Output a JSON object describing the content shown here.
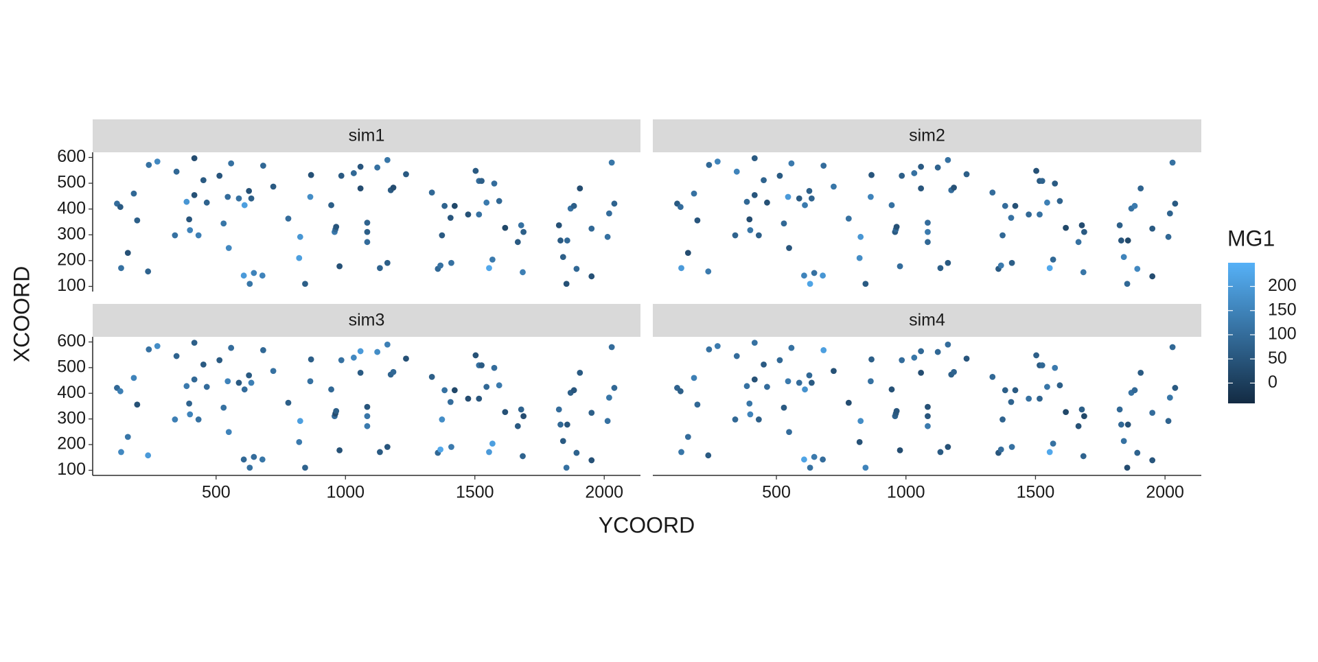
{
  "chart_data": {
    "type": "scatter",
    "x_label": "YCOORD",
    "y_label": "XCOORD",
    "xlim": [
      23,
      2140
    ],
    "ylim": [
      80,
      620
    ],
    "xticks": [
      500,
      1000,
      1500,
      2000
    ],
    "yticks": [
      100,
      200,
      300,
      400,
      500,
      600
    ],
    "x": [
      117,
      130,
      133,
      159,
      182,
      195,
      237,
      240,
      273,
      341,
      347,
      386,
      396,
      399,
      416,
      416,
      432,
      451,
      464,
      513,
      529,
      545,
      549,
      558,
      588,
      610,
      607,
      627,
      630,
      636,
      646,
      679,
      682,
      721,
      779,
      821,
      825,
      844,
      864,
      867,
      945,
      958,
      961,
      964,
      977,
      984,
      1032,
      1058,
      1058,
      1084,
      1084,
      1084,
      1123,
      1133,
      1162,
      1162,
      1175,
      1185,
      1234,
      1334,
      1357,
      1367,
      1373,
      1383,
      1406,
      1409,
      1422,
      1474,
      1503,
      1516,
      1526,
      1516,
      1545,
      1555,
      1568,
      1575,
      1594,
      1617,
      1666,
      1679,
      1688,
      1685,
      1825,
      1831,
      1841,
      1854,
      1857,
      1870,
      1883,
      1893,
      1906,
      1951,
      1951,
      2013,
      2019,
      2029,
      2039
    ],
    "y": [
      421,
      408,
      171,
      230,
      460,
      356,
      158,
      571,
      584,
      298,
      545,
      428,
      360,
      318,
      597,
      454,
      298,
      512,
      425,
      529,
      344,
      447,
      249,
      577,
      441,
      415,
      142,
      470,
      110,
      441,
      152,
      142,
      568,
      487,
      363,
      210,
      292,
      110,
      447,
      532,
      415,
      311,
      321,
      331,
      178,
      529,
      539,
      480,
      564,
      347,
      311,
      272,
      561,
      171,
      590,
      191,
      473,
      483,
      535,
      464,
      168,
      181,
      298,
      412,
      366,
      191,
      412,
      379,
      548,
      509,
      509,
      379,
      425,
      171,
      204,
      499,
      431,
      327,
      272,
      337,
      311,
      155,
      337,
      278,
      214,
      110,
      278,
      402,
      412,
      168,
      480,
      139,
      324,
      292,
      383,
      580,
      421
    ],
    "facets": [
      {
        "name": "sim1",
        "values": [
          100,
          60,
          110,
          40,
          90,
          70,
          80,
          110,
          160,
          110,
          90,
          190,
          50,
          150,
          30,
          40,
          140,
          60,
          80,
          50,
          120,
          100,
          160,
          110,
          110,
          210,
          200,
          40,
          120,
          70,
          150,
          150,
          90,
          60,
          100,
          210,
          190,
          70,
          170,
          40,
          70,
          130,
          90,
          50,
          40,
          60,
          90,
          30,
          50,
          80,
          70,
          100,
          110,
          80,
          120,
          70,
          60,
          30,
          60,
          90,
          90,
          110,
          60,
          80,
          50,
          110,
          20,
          40,
          60,
          100,
          70,
          110,
          130,
          230,
          130,
          100,
          90,
          20,
          60,
          110,
          70,
          140,
          40,
          60,
          70,
          40,
          90,
          110,
          70,
          90,
          30,
          40,
          90,
          110,
          100,
          120,
          80
        ]
      },
      {
        "name": "sim2",
        "values": [
          60,
          100,
          200,
          30,
          110,
          50,
          130,
          90,
          150,
          80,
          150,
          90,
          30,
          120,
          60,
          50,
          70,
          80,
          40,
          60,
          90,
          200,
          50,
          130,
          60,
          130,
          150,
          70,
          220,
          80,
          110,
          190,
          100,
          120,
          110,
          170,
          190,
          60,
          150,
          50,
          110,
          60,
          90,
          40,
          100,
          70,
          110,
          50,
          60,
          100,
          130,
          90,
          80,
          70,
          110,
          60,
          100,
          40,
          70,
          100,
          60,
          130,
          90,
          100,
          110,
          70,
          40,
          90,
          40,
          60,
          80,
          110,
          140,
          230,
          90,
          60,
          80,
          20,
          110,
          30,
          60,
          120,
          70,
          50,
          150,
          90,
          20,
          110,
          130,
          160,
          80,
          30,
          60,
          90,
          80,
          110,
          60
        ]
      },
      {
        "name": "sim3",
        "values": [
          90,
          140,
          160,
          120,
          150,
          40,
          200,
          110,
          170,
          140,
          80,
          130,
          80,
          150,
          70,
          90,
          110,
          60,
          100,
          60,
          110,
          150,
          150,
          100,
          60,
          100,
          90,
          60,
          110,
          140,
          100,
          120,
          90,
          110,
          70,
          130,
          210,
          80,
          110,
          70,
          90,
          100,
          30,
          70,
          40,
          110,
          160,
          60,
          200,
          50,
          120,
          130,
          170,
          60,
          140,
          50,
          80,
          90,
          40,
          70,
          90,
          230,
          170,
          110,
          100,
          130,
          20,
          30,
          40,
          110,
          60,
          50,
          90,
          200,
          210,
          100,
          130,
          40,
          60,
          80,
          30,
          80,
          100,
          90,
          60,
          110,
          50,
          70,
          50,
          80,
          60,
          40,
          70,
          110,
          120,
          100,
          90
        ]
      },
      {
        "name": "sim4",
        "values": [
          80,
          70,
          120,
          100,
          140,
          90,
          60,
          110,
          130,
          90,
          100,
          110,
          120,
          150,
          110,
          40,
          70,
          60,
          100,
          90,
          60,
          130,
          100,
          110,
          100,
          180,
          220,
          90,
          110,
          60,
          130,
          100,
          210,
          40,
          30,
          40,
          170,
          150,
          110,
          70,
          40,
          80,
          60,
          50,
          30,
          100,
          120,
          30,
          90,
          40,
          50,
          130,
          90,
          60,
          100,
          40,
          70,
          80,
          50,
          90,
          50,
          100,
          80,
          70,
          80,
          110,
          60,
          110,
          70,
          60,
          90,
          80,
          120,
          230,
          110,
          130,
          70,
          20,
          40,
          70,
          20,
          80,
          90,
          90,
          110,
          30,
          40,
          110,
          90,
          80,
          60,
          50,
          100,
          80,
          120,
          90,
          60
        ]
      }
    ],
    "color_legend": {
      "title": "MG1",
      "lim": [
        -42,
        249
      ],
      "ticks": [
        0,
        50,
        100,
        150,
        200
      ],
      "low": "#132B43",
      "high": "#56B1F7"
    }
  }
}
